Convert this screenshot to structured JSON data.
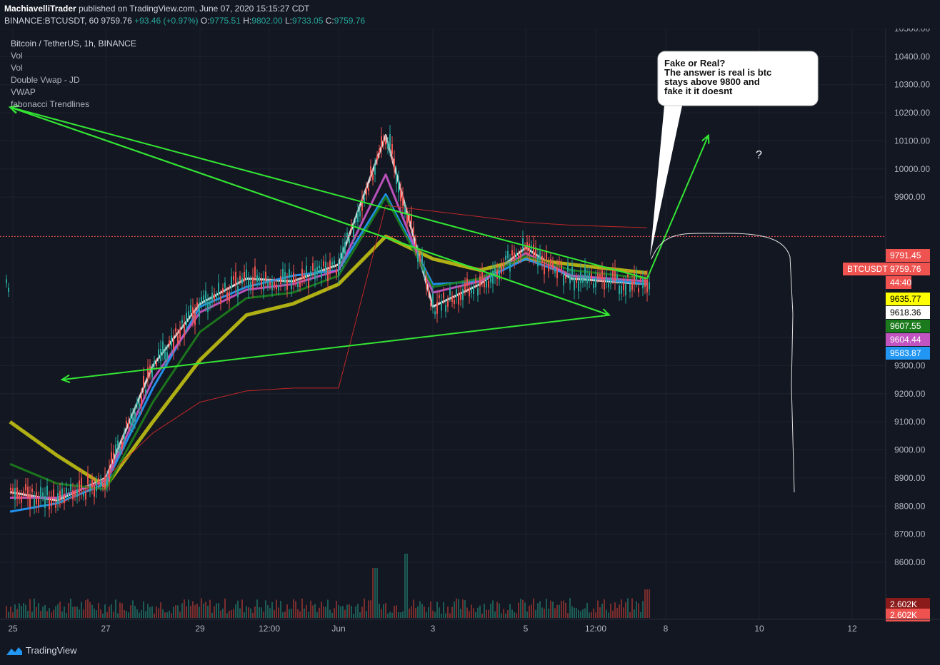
{
  "header": {
    "publisher": "MachiavelliTrader",
    "published_text": "published on TradingView.com, June 07, 2020 15:15:27 CDT",
    "symbol_line": "BINANCE:BTCUSDT, 60",
    "last": "9759.76",
    "change": "+93.46 (+0.97%)",
    "open_label": "O:",
    "open": "9775.51",
    "high_label": "H:",
    "high": "9802.00",
    "low_label": "L:",
    "low": "9733.05",
    "close_label": "C:",
    "close": "9759.76"
  },
  "legend": {
    "title": "Bitcoin / TetherUS, 1h, BINANCE",
    "indicators": [
      "Vol",
      "Vol",
      "Double Vwap - JD",
      "VWAP",
      "fabonacci Trendlines"
    ]
  },
  "annotation": {
    "lines": [
      "Fake or Real?",
      "The answer is real is btc",
      "stays above 9800 and",
      "fake it it doesnt"
    ],
    "question_mark": "?"
  },
  "axis": {
    "price_ticks": [
      "10500.00",
      "10400.00",
      "10300.00",
      "10200.00",
      "10100.00",
      "10000.00",
      "9900.00",
      "9400.00",
      "9300.00",
      "9200.00",
      "9100.00",
      "9000.00",
      "8900.00",
      "8800.00",
      "8700.00",
      "8600.00"
    ],
    "time_ticks": [
      "25",
      "27",
      "29",
      "12:00",
      "Jun",
      "3",
      "5",
      "12:00",
      "8",
      "10",
      "12"
    ],
    "price_badges": [
      {
        "text": "9791.45",
        "bg": "#ef5350",
        "fg": "#ffffff"
      },
      {
        "text": "9759.76",
        "bg": "#ef5350",
        "fg": "#ffffff"
      },
      {
        "text": "44:40",
        "bg": "#ef5350",
        "fg": "#ffffff"
      },
      {
        "text": "9635.77",
        "bg": "#ffff00",
        "fg": "#000000"
      },
      {
        "text": "9618.36",
        "bg": "#ffffff",
        "fg": "#000000"
      },
      {
        "text": "9607.55",
        "bg": "#1b7a1b",
        "fg": "#ffffff"
      },
      {
        "text": "9604.44",
        "bg": "#c154c1",
        "fg": "#ffffff"
      },
      {
        "text": "9583.87",
        "bg": "#2196f3",
        "fg": "#ffffff"
      },
      {
        "text": "2.602K",
        "bg": "#8b1a1a",
        "fg": "#ffffff"
      },
      {
        "text": "2.602K",
        "bg": "#ef5350",
        "fg": "#ffffff"
      }
    ],
    "symbol_badge": "BTCUSDT",
    "partial_tick": "97"
  },
  "chart_data": {
    "type": "line",
    "symbol": "BTCUSDT",
    "interval": "1h",
    "ylim": [
      8600,
      10550
    ],
    "price_line": 9759.76,
    "x": [
      "25",
      "26",
      "27",
      "28",
      "29",
      "30",
      "31",
      "Jun",
      "2",
      "3",
      "4",
      "5",
      "6",
      "7"
    ],
    "series": [
      {
        "color": "#e5e5e5",
        "values": [
          8850,
          8820,
          8900,
          9300,
          9520,
          9610,
          9600,
          9660,
          10120,
          9510,
          9590,
          9720,
          9610,
          9590
        ]
      },
      {
        "color": "#b8b814",
        "values": [
          9100,
          8980,
          8870,
          9100,
          9320,
          9480,
          9520,
          9590,
          9760,
          9680,
          9640,
          9680,
          9660,
          9630
        ]
      },
      {
        "color": "#2196f3",
        "values": [
          8780,
          8810,
          8880,
          9220,
          9510,
          9580,
          9620,
          9640,
          9910,
          9590,
          9600,
          9680,
          9620,
          9590
        ]
      },
      {
        "color": "#c154c1",
        "values": [
          8830,
          8830,
          8890,
          9250,
          9490,
          9570,
          9590,
          9640,
          9980,
          9560,
          9600,
          9700,
          9620,
          9600
        ]
      },
      {
        "color": "#1b7a1b",
        "values": [
          8950,
          8880,
          8860,
          9170,
          9420,
          9540,
          9560,
          9620,
          9900,
          9580,
          9610,
          9690,
          9640,
          9610
        ]
      },
      {
        "color": "#c62828",
        "values": [
          null,
          8800,
          8900,
          9060,
          9170,
          9210,
          9220,
          9220,
          9870,
          9850,
          9830,
          9810,
          9800,
          9791
        ]
      }
    ],
    "drawings": {
      "triangle": [
        [
          [
            0,
            10220
          ],
          [
            12.5,
            9480
          ]
        ],
        [
          [
            12.5,
            9480
          ],
          [
            1.1,
            9250
          ]
        ],
        [
          [
            0,
            10220
          ],
          [
            13.0,
            9610
          ]
        ],
        [
          [
            13.0,
            9610
          ],
          [
            14.3,
            10120
          ]
        ]
      ],
      "breakout_target": "?"
    }
  }
}
